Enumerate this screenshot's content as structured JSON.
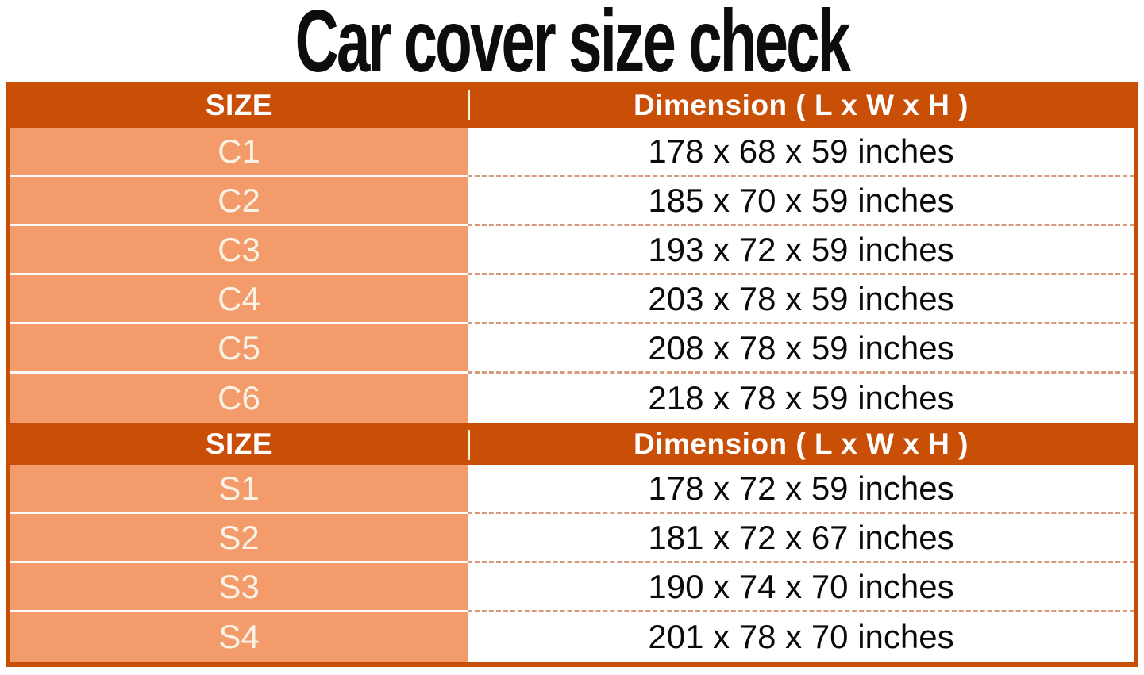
{
  "title": "Car cover size check",
  "colors": {
    "header_background": "#c94e06",
    "size_cell_background": "#f49b6b",
    "dimension_cell_background": "#ffffff",
    "frame_border": "#c94e06",
    "dashed_separator": "#d69b7e",
    "header_text": "#ffffff",
    "size_text": "#f9f3e6",
    "dimension_text": "#0a0a0a",
    "title_text": "#0d0d0d"
  },
  "table": {
    "sections": [
      {
        "header": {
          "size_label": "SIZE",
          "dimension_label": "Dimension ( L x W x H )"
        },
        "rows": [
          {
            "size": "C1",
            "dimension": "178 x 68 x 59 inches"
          },
          {
            "size": "C2",
            "dimension": "185 x 70 x 59 inches"
          },
          {
            "size": "C3",
            "dimension": "193 x 72 x 59 inches"
          },
          {
            "size": "C4",
            "dimension": "203 x 78 x 59 inches"
          },
          {
            "size": "C5",
            "dimension": "208 x 78 x 59 inches"
          },
          {
            "size": "C6",
            "dimension": "218 x 78 x 59 inches"
          }
        ]
      },
      {
        "header": {
          "size_label": "SIZE",
          "dimension_label": "Dimension ( L x W x H )"
        },
        "rows": [
          {
            "size": "S1",
            "dimension": "178 x 72 x 59 inches"
          },
          {
            "size": "S2",
            "dimension": "181 x 72 x 67 inches"
          },
          {
            "size": "S3",
            "dimension": "190 x 74 x 70 inches"
          },
          {
            "size": "S4",
            "dimension": "201 x 78 x 70 inches"
          }
        ]
      }
    ]
  },
  "chart_data": {
    "type": "table",
    "title": "Car cover size check",
    "columns": [
      "SIZE",
      "Dimension ( L x W x H )"
    ],
    "rows": [
      [
        "C1",
        "178 x 68 x 59 inches"
      ],
      [
        "C2",
        "185 x 70 x 59 inches"
      ],
      [
        "C3",
        "193 x 72 x 59 inches"
      ],
      [
        "C4",
        "203 x 78 x 59 inches"
      ],
      [
        "C5",
        "208 x 78 x 59 inches"
      ],
      [
        "C6",
        "218 x 78 x 59 inches"
      ],
      [
        "S1",
        "178 x 72 x 59 inches"
      ],
      [
        "S2",
        "181 x 72 x 67 inches"
      ],
      [
        "S3",
        "190 x 74 x 70 inches"
      ],
      [
        "S4",
        "201 x 78 x 70 inches"
      ]
    ]
  }
}
